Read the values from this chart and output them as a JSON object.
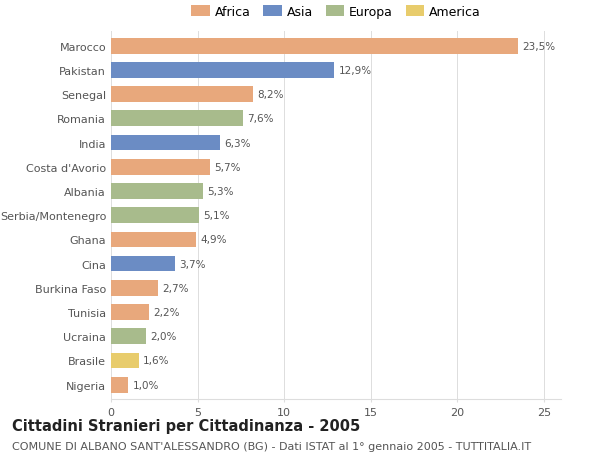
{
  "countries": [
    "Marocco",
    "Pakistan",
    "Senegal",
    "Romania",
    "India",
    "Costa d'Avorio",
    "Albania",
    "Serbia/Montenegro",
    "Ghana",
    "Cina",
    "Burkina Faso",
    "Tunisia",
    "Ucraina",
    "Brasile",
    "Nigeria"
  ],
  "values": [
    23.5,
    12.9,
    8.2,
    7.6,
    6.3,
    5.7,
    5.3,
    5.1,
    4.9,
    3.7,
    2.7,
    2.2,
    2.0,
    1.6,
    1.0
  ],
  "labels": [
    "23,5%",
    "12,9%",
    "8,2%",
    "7,6%",
    "6,3%",
    "5,7%",
    "5,3%",
    "5,1%",
    "4,9%",
    "3,7%",
    "2,7%",
    "2,2%",
    "2,0%",
    "1,6%",
    "1,0%"
  ],
  "continents": [
    "Africa",
    "Asia",
    "Africa",
    "Europa",
    "Asia",
    "Africa",
    "Europa",
    "Europa",
    "Africa",
    "Asia",
    "Africa",
    "Africa",
    "Europa",
    "America",
    "Africa"
  ],
  "colors": {
    "Africa": "#E8A87C",
    "Asia": "#6B8CC4",
    "Europa": "#A8BB8C",
    "America": "#E8CC6C"
  },
  "legend_order": [
    "Africa",
    "Asia",
    "Europa",
    "America"
  ],
  "xlim": [
    0,
    26
  ],
  "xticks": [
    0,
    5,
    10,
    15,
    20,
    25
  ],
  "title": "Cittadini Stranieri per Cittadinanza - 2005",
  "subtitle": "COMUNE DI ALBANO SANT'ALESSANDRO (BG) - Dati ISTAT al 1° gennaio 2005 - TUTTITALIA.IT",
  "background_color": "#ffffff",
  "bar_height": 0.65,
  "title_fontsize": 10.5,
  "subtitle_fontsize": 8,
  "label_fontsize": 7.5,
  "tick_fontsize": 8
}
